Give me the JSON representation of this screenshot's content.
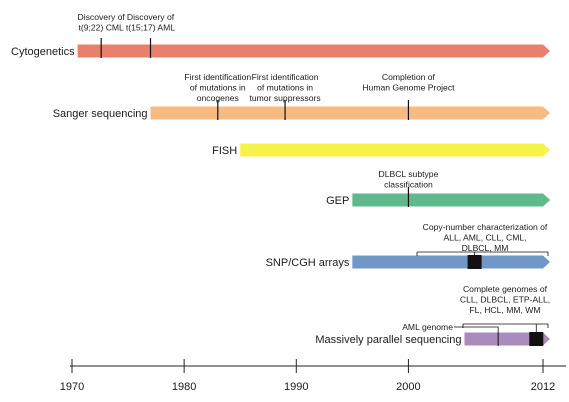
{
  "timeline": [
    {
      "label": "Cytogenetics",
      "start_year": 1970.5,
      "color": "#E9806B",
      "events": [
        {
          "year": 1972.6,
          "text_lines": [
            "Discovery of",
            "t(9;22) CML"
          ]
        },
        {
          "year": 1977,
          "text_lines": [
            "Discovery of",
            "t(15;17) AML"
          ]
        }
      ]
    },
    {
      "label": "Sanger sequencing",
      "start_year": 1977,
      "color": "#F7BB82",
      "events": [
        {
          "year": 1983,
          "text_lines": [
            "First identification",
            "of mutations in",
            "oncogenes"
          ]
        },
        {
          "year": 1989,
          "text_lines": [
            "First identification",
            "of mutations in",
            "tumor suppressors"
          ]
        },
        {
          "year": 2000,
          "text_lines": [
            "Completion of",
            "Human Genome Project"
          ]
        }
      ]
    },
    {
      "label": "FISH",
      "start_year": 1985,
      "color": "#F6F34A",
      "events": []
    },
    {
      "label": "GEP",
      "start_year": 1995,
      "color": "#5FB98C",
      "events": [
        {
          "year": 2000,
          "text_lines": [
            "DLBCL subtype",
            "classification"
          ]
        }
      ]
    },
    {
      "label": "SNP/CGH arrays",
      "start_year": 1995,
      "color": "#6F97C7",
      "events": [
        {
          "year": 2005.9,
          "box": true,
          "text_lines": [
            "Copy-number characterization of",
            "ALL, AML, CLL, CML,",
            "DLBCL, MM"
          ]
        }
      ]
    },
    {
      "label": "Massively parallel sequencing",
      "start_year": 2005,
      "color": "#A98BBE",
      "events": [
        {
          "year": 2008,
          "text_lines": [
            "AML genome"
          ]
        },
        {
          "year": 2011.4,
          "box": true,
          "text_lines": [
            "Complete genomes of",
            "CLL, DLBCL, ETP-ALL,",
            "FL, HCL, MM, WM"
          ]
        }
      ]
    }
  ],
  "axis": {
    "ticks": [
      1970,
      1980,
      1990,
      2000,
      2012
    ],
    "tick_labels": [
      "1970",
      "1980",
      "1990",
      "2000",
      "2012"
    ]
  }
}
